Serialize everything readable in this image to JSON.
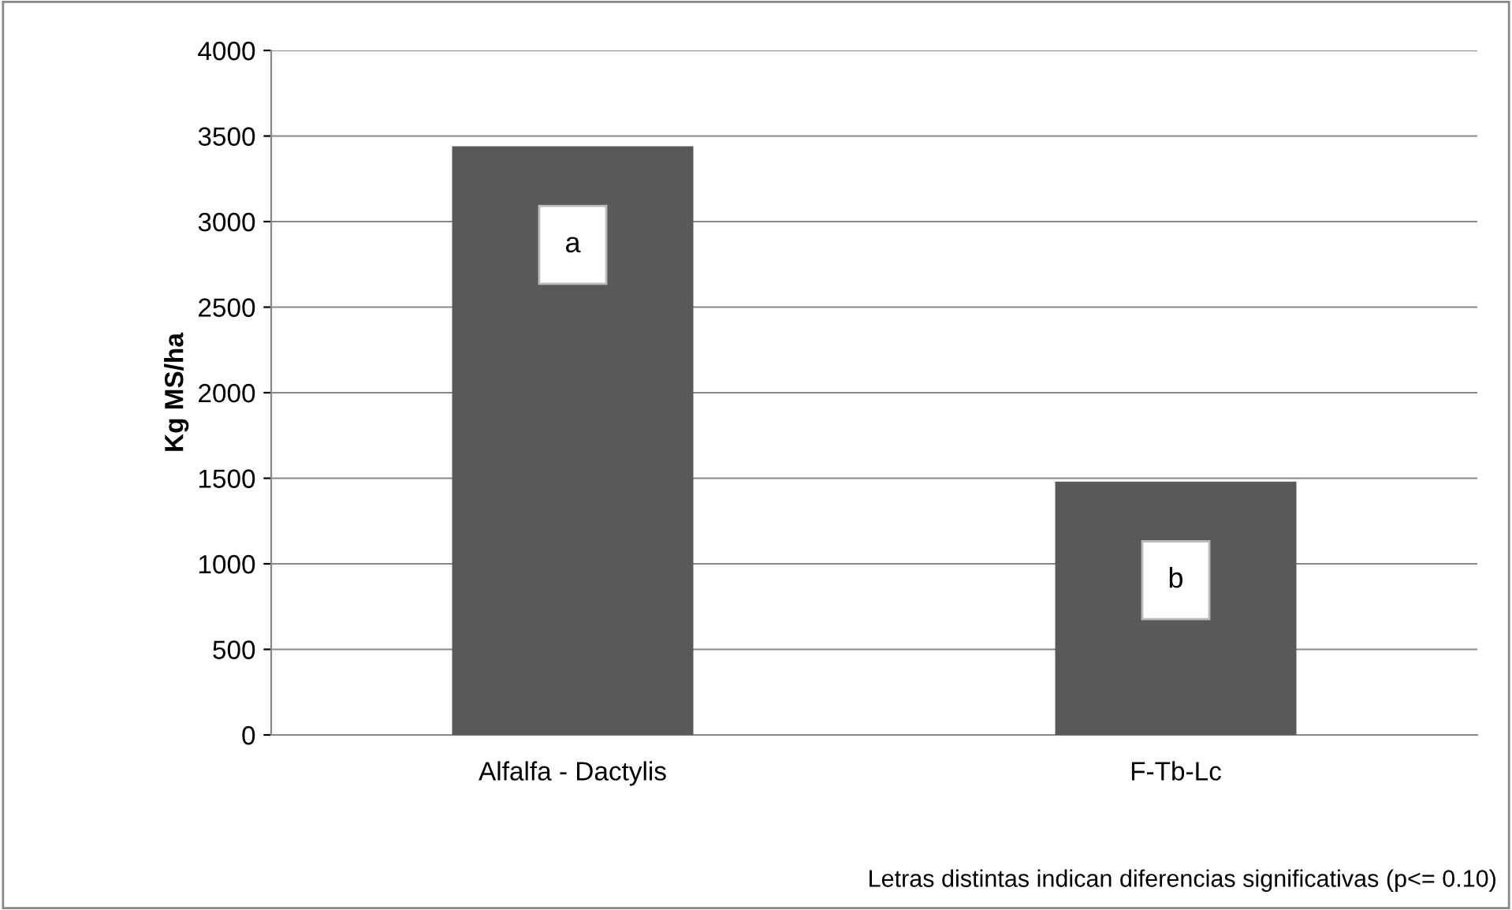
{
  "chart_data": {
    "type": "bar",
    "ylabel": "Kg MS/ha",
    "categories": [
      "Alfalfa - Dactylis",
      "F-Tb-Lc"
    ],
    "values": [
      3440,
      1480
    ],
    "color": "#595959",
    "ylim": [
      0,
      4000
    ],
    "yticks": [
      0,
      500,
      1000,
      1500,
      2000,
      2500,
      3000,
      3500,
      4000
    ],
    "grid": "y",
    "legend": false,
    "annotations": [
      "a",
      "b",
      "Letras distintas indican diferencias significativas (p<= 0.10)"
    ]
  }
}
